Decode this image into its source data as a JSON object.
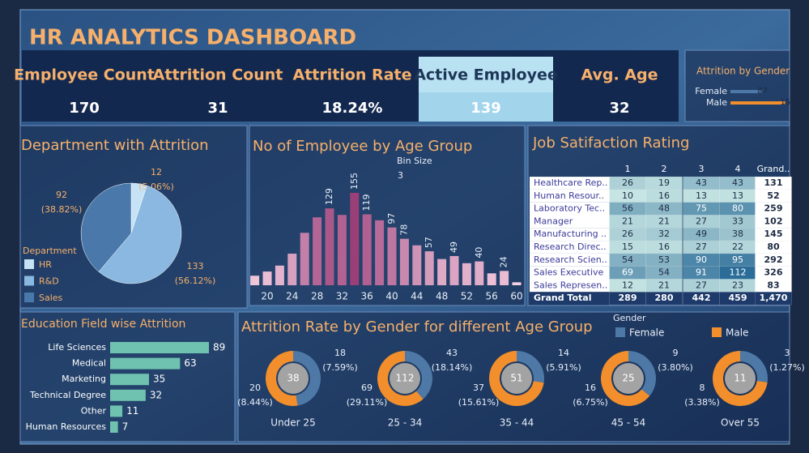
{
  "title": "HR ANALYTICS DASHBOARD",
  "kpis": [
    {
      "label": "Employee Count",
      "value": 170
    },
    {
      "label": "Attrition Count",
      "value": 31
    },
    {
      "label": "Attrition Rate",
      "value": "18.24%"
    },
    {
      "label": "Active Employee",
      "value": 139
    },
    {
      "label": "Avg. Age",
      "value": 32
    }
  ],
  "chart_data": [
    {
      "type": "hbar",
      "title": "Attrition by Gender",
      "categories": [
        "Female",
        "Male"
      ],
      "values": [
        87,
        150
      ],
      "colors": [
        "#4e79a7",
        "#f28e2b"
      ]
    },
    {
      "type": "pie",
      "title": "Department with Attrition",
      "legend_title": "Department",
      "categories": [
        "HR",
        "R&D",
        "Sales"
      ],
      "values": [
        12,
        133,
        92
      ],
      "percent_labels": [
        "(5.06%)",
        "(56.12%)",
        "(38.82%)"
      ],
      "colors": [
        "#c6e2f5",
        "#8ab8e0",
        "#4a78aa"
      ]
    },
    {
      "type": "histogram",
      "title": "No of Employee by Age Group",
      "parameter": {
        "label": "Bin Size",
        "value": 3
      },
      "x": [
        18,
        20,
        22,
        24,
        26,
        28,
        30,
        32,
        34,
        36,
        38,
        40,
        42,
        44,
        46,
        48,
        50,
        52,
        54,
        56,
        58,
        60
      ],
      "values": [
        16,
        23,
        33,
        53,
        88,
        114,
        129,
        118,
        155,
        119,
        109,
        97,
        78,
        67,
        57,
        44,
        49,
        37,
        40,
        20,
        24,
        5
      ],
      "value_labels": [
        null,
        null,
        null,
        null,
        null,
        null,
        "129",
        null,
        "155",
        "119",
        null,
        "97",
        "78",
        null,
        "57",
        null,
        "49",
        null,
        "40",
        null,
        "24",
        null
      ],
      "xlim": [
        17,
        61
      ],
      "xticks": [
        20,
        24,
        28,
        32,
        36,
        40,
        44,
        48,
        52,
        56,
        60
      ],
      "color_range": [
        "#f7d3e4",
        "#9b3f78"
      ]
    },
    {
      "type": "hbar",
      "title": "Education Field wise Attrition",
      "categories": [
        "Life Sciences",
        "Medical",
        "Marketing",
        "Technical Degree",
        "Other",
        "Human Resources"
      ],
      "values": [
        89,
        63,
        35,
        32,
        11,
        7
      ],
      "color": "#6fc2b0"
    },
    {
      "type": "donut",
      "title": "Attrition Rate by Gender for different Age Group",
      "legend_title": "Gender",
      "categories": [
        "Under 25",
        "25 - 34",
        "35 - 44",
        "45 - 54",
        "Over 55"
      ],
      "totals": [
        38,
        112,
        51,
        25,
        11
      ],
      "series": [
        {
          "name": "Female",
          "color": "#4e79a7",
          "values": [
            18,
            43,
            14,
            9,
            3
          ],
          "percent_labels": [
            "(7.59%)",
            "(18.14%)",
            "(5.91%)",
            "(3.80%)",
            "(1.27%)"
          ]
        },
        {
          "name": "Male",
          "color": "#f28e2b",
          "values": [
            20,
            69,
            37,
            16,
            8
          ],
          "percent_labels": [
            "(8.44%)",
            "(29.11%)",
            "(15.61%)",
            "(6.75%)",
            "(3.38%)"
          ]
        }
      ]
    }
  ],
  "job_satisfaction": {
    "title": "Job Satifaction Rating",
    "columns": [
      "1",
      "2",
      "3",
      "4",
      "Grand.."
    ],
    "color_range": [
      "#d4f0ea",
      "#2b6c98"
    ],
    "rows": [
      {
        "label": "Healthcare Rep..",
        "cells": [
          26,
          19,
          43,
          43,
          131
        ]
      },
      {
        "label": "Human Resour..",
        "cells": [
          10,
          16,
          13,
          13,
          52
        ]
      },
      {
        "label": "Laboratory Tec..",
        "cells": [
          56,
          48,
          75,
          80,
          259
        ]
      },
      {
        "label": "Manager",
        "cells": [
          21,
          21,
          27,
          33,
          102
        ]
      },
      {
        "label": "Manufacturing ..",
        "cells": [
          26,
          32,
          49,
          38,
          145
        ]
      },
      {
        "label": "Research Direc..",
        "cells": [
          15,
          16,
          27,
          22,
          80
        ]
      },
      {
        "label": "Research Scien..",
        "cells": [
          54,
          53,
          90,
          95,
          292
        ]
      },
      {
        "label": "Sales Executive",
        "cells": [
          69,
          54,
          91,
          112,
          326
        ]
      },
      {
        "label": "Sales Represen..",
        "cells": [
          12,
          21,
          27,
          23,
          83
        ]
      },
      {
        "label": "Grand Total",
        "cells": [
          289,
          280,
          442,
          459,
          "1,470"
        ]
      }
    ]
  }
}
